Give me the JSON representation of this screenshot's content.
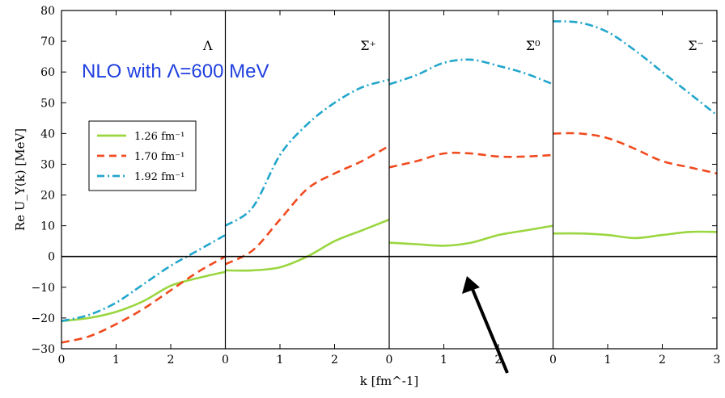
{
  "chart_data": {
    "type": "line",
    "ylabel": "Re U_Y(k) [MeV]",
    "xlabel": "k [fm^-1]",
    "ylim": [
      -30,
      80
    ],
    "yticks": [
      -30,
      -20,
      -10,
      0,
      10,
      20,
      30,
      40,
      50,
      60,
      70,
      80
    ],
    "xlim": [
      0,
      3
    ],
    "xticks": [
      0,
      1,
      2
    ],
    "last_xticks": [
      0,
      1,
      2,
      3
    ],
    "zero_line": true,
    "legend_placement": "left, inside first panel",
    "annotation": "NLO with Λ=600 MeV",
    "annotation_color": "#1f3fe0",
    "arrow_color": "#000000",
    "panels": [
      {
        "name": "Λ",
        "series": [
          {
            "name": "1.26 fm⁻¹",
            "style": "solid",
            "color": "#9ad63f",
            "x": [
              0,
              0.5,
              1.0,
              1.5,
              2.0,
              2.5,
              3.0
            ],
            "y": [
              -21,
              -20,
              -18,
              -14.5,
              -9.5,
              -7,
              -5
            ]
          },
          {
            "name": "1.70 fm⁻¹",
            "style": "dashed",
            "color": "#f04a1e",
            "x": [
              0,
              0.5,
              1.0,
              1.5,
              2.0,
              2.5,
              3.0
            ],
            "y": [
              -28,
              -26,
              -22,
              -17,
              -11,
              -5,
              0
            ]
          },
          {
            "name": "1.92 fm⁻¹",
            "style": "dashdot",
            "color": "#22a6cc",
            "x": [
              0,
              0.5,
              1.0,
              1.5,
              2.0,
              2.5,
              3.0
            ],
            "y": [
              -21,
              -19,
              -15,
              -9,
              -3,
              2,
              7
            ]
          }
        ]
      },
      {
        "name": "Σ⁺",
        "series": [
          {
            "name": "1.26 fm⁻¹",
            "style": "solid",
            "color": "#9ad63f",
            "x": [
              0,
              0.5,
              1.0,
              1.5,
              2.0,
              2.5,
              3.0
            ],
            "y": [
              -4.5,
              -4.5,
              -3.5,
              0,
              5,
              8.5,
              12
            ]
          },
          {
            "name": "1.70 fm⁻¹",
            "style": "dashed",
            "color": "#f04a1e",
            "x": [
              0,
              0.5,
              1.0,
              1.5,
              2.0,
              2.5,
              3.0
            ],
            "y": [
              -2.5,
              2,
              12,
              22,
              27,
              31,
              36
            ]
          },
          {
            "name": "1.92 fm⁻¹",
            "style": "dashdot",
            "color": "#22a6cc",
            "x": [
              0,
              0.5,
              1.0,
              1.5,
              2.0,
              2.5,
              3.0
            ],
            "y": [
              10,
              16,
              33,
              43,
              50,
              55,
              57.5
            ]
          }
        ]
      },
      {
        "name": "Σ⁰",
        "series": [
          {
            "name": "1.26 fm⁻¹",
            "style": "solid",
            "color": "#9ad63f",
            "x": [
              0,
              0.5,
              1.0,
              1.5,
              2.0,
              2.5,
              3.0
            ],
            "y": [
              4.5,
              4,
              3.5,
              4.5,
              7,
              8.5,
              10
            ]
          },
          {
            "name": "1.70 fm⁻¹",
            "style": "dashed",
            "color": "#f04a1e",
            "x": [
              0,
              0.5,
              1.0,
              1.5,
              2.0,
              2.5,
              3.0
            ],
            "y": [
              29,
              31,
              33.5,
              33.5,
              32.5,
              32.5,
              33
            ]
          },
          {
            "name": "1.92 fm⁻¹",
            "style": "dashdot",
            "color": "#22a6cc",
            "x": [
              0,
              0.5,
              1.0,
              1.5,
              2.0,
              2.5,
              3.0
            ],
            "y": [
              56,
              59,
              63,
              64,
              62,
              59.5,
              56
            ]
          }
        ]
      },
      {
        "name": "Σ⁻",
        "series": [
          {
            "name": "1.26 fm⁻¹",
            "style": "solid",
            "color": "#9ad63f",
            "x": [
              0,
              0.5,
              1.0,
              1.5,
              2.0,
              2.5,
              3.0
            ],
            "y": [
              7.5,
              7.5,
              7,
              6,
              7,
              8,
              8
            ]
          },
          {
            "name": "1.70 fm⁻¹",
            "style": "dashed",
            "color": "#f04a1e",
            "x": [
              0,
              0.5,
              1.0,
              1.5,
              2.0,
              2.5,
              3.0
            ],
            "y": [
              40,
              40,
              38.5,
              35,
              31,
              29,
              27
            ]
          },
          {
            "name": "1.92 fm⁻¹",
            "style": "dashdot",
            "color": "#22a6cc",
            "x": [
              0,
              0.5,
              1.0,
              1.5,
              2.0,
              2.5,
              3.0
            ],
            "y": [
              76.5,
              76,
              73,
              67,
              60,
              53,
              46
            ]
          }
        ]
      }
    ]
  }
}
